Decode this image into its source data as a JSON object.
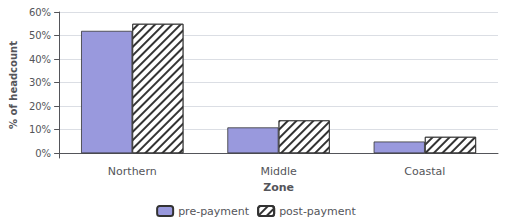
{
  "chart_data": {
    "type": "bar",
    "categories": [
      "Northern",
      "Middle",
      "Coastal"
    ],
    "series": [
      {
        "name": "pre-payment",
        "color": "#9999dd",
        "values": [
          52,
          11,
          5
        ]
      },
      {
        "name": "post-payment",
        "color": "#ffffff",
        "values": [
          55,
          14,
          7
        ]
      }
    ],
    "xlabel": "Zone",
    "ylabel": "% of headcount",
    "ylim": [
      -2,
      60
    ],
    "yticks": [
      {
        "value": 0,
        "label": "0%"
      },
      {
        "value": 10,
        "label": "10%"
      },
      {
        "value": 20,
        "label": "20%"
      },
      {
        "value": 30,
        "label": "30%"
      },
      {
        "value": 40,
        "label": "40%"
      },
      {
        "value": 50,
        "label": "50%"
      },
      {
        "value": 60,
        "label": "60%"
      }
    ],
    "grid": true,
    "legend": "bottom"
  }
}
